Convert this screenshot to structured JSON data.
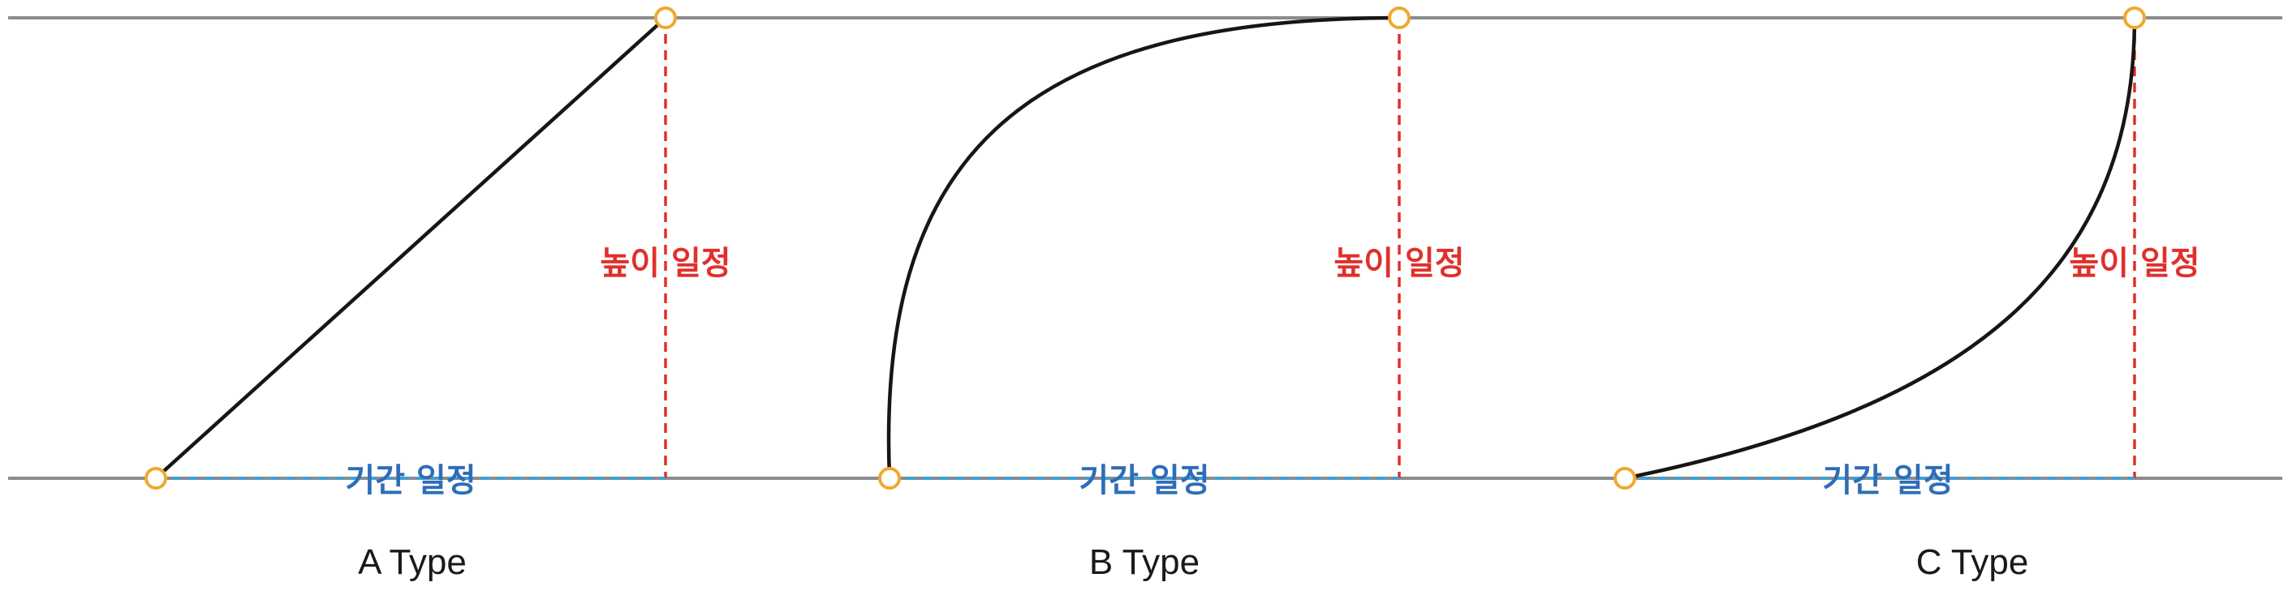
{
  "labels": {
    "height": "높이 일정",
    "duration": "기간 일정"
  },
  "panels": [
    {
      "id": "a",
      "type_label": "A Type",
      "curve_shape": "linear"
    },
    {
      "id": "b",
      "type_label": "B Type",
      "curve_shape": "ease-out"
    },
    {
      "id": "c",
      "type_label": "C Type",
      "curve_shape": "ease-in"
    }
  ],
  "colors": {
    "baseline": "#8c8c8c",
    "height_guide": "#e0302b",
    "duration_guide": "#3aa0dc",
    "duration_text": "#2e6db8",
    "curve": "#1a1414",
    "anchor": "#f0a830"
  }
}
